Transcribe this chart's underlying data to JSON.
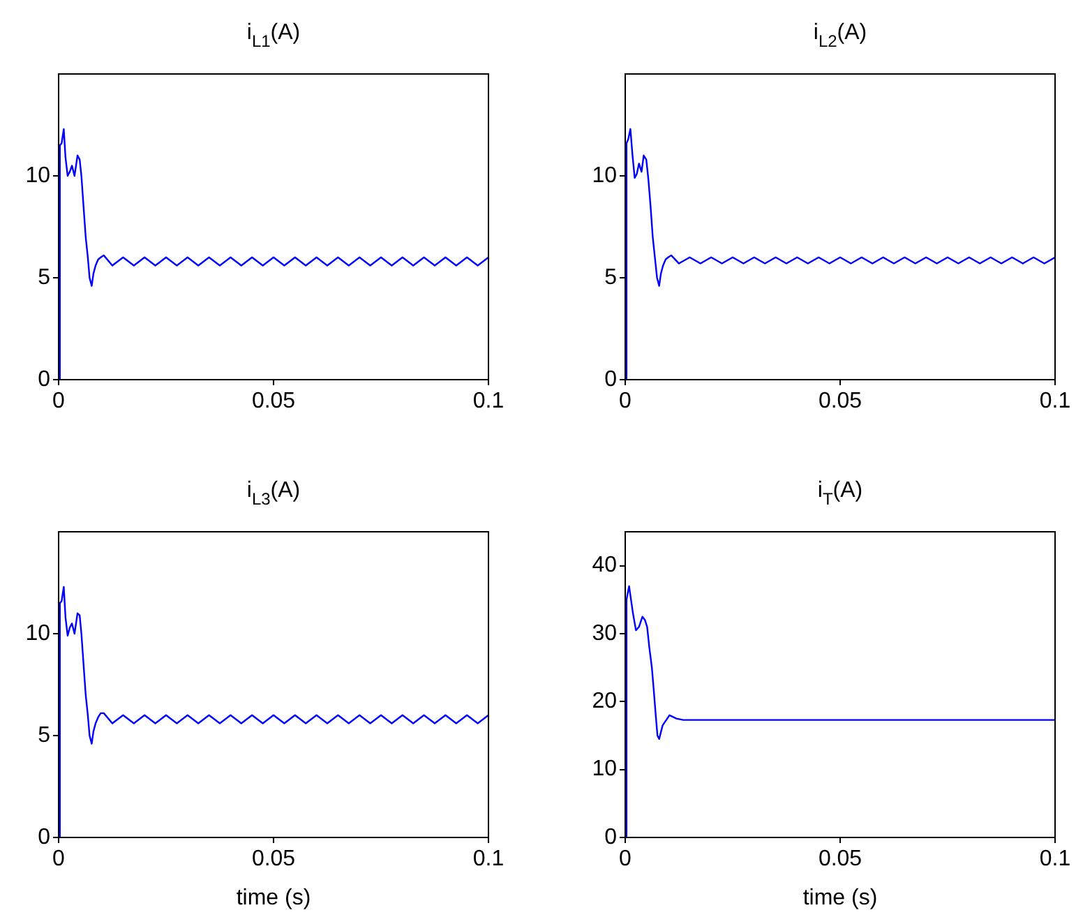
{
  "chart_data": [
    {
      "type": "line",
      "title": "i$_{L1}$(A)",
      "xlim": [
        0,
        0.1
      ],
      "xticks": [
        0,
        0.05,
        0.1
      ],
      "ylim": [
        0,
        15
      ],
      "yticks": [
        0,
        5,
        10
      ],
      "grid": false,
      "marker": "none",
      "line_style": "solid",
      "series": [
        {
          "color": "#0000ff",
          "x": [
            0,
            0.0003,
            0.0007,
            0.0012,
            0.0016,
            0.0021,
            0.0026,
            0.0031,
            0.0037,
            0.0044,
            0.0049,
            0.0053,
            0.0058,
            0.0063,
            0.0068,
            0.0072,
            0.0077,
            0.0081,
            0.0086,
            0.0092,
            0.0098,
            0.0105,
            0.0125,
            0.015,
            0.0175,
            0.02,
            0.0225,
            0.025,
            0.0275,
            0.03,
            0.0325,
            0.035,
            0.0375,
            0.04,
            0.0425,
            0.045,
            0.0475,
            0.05,
            0.0525,
            0.055,
            0.0575,
            0.06,
            0.0625,
            0.065,
            0.0675,
            0.07,
            0.0725,
            0.075,
            0.0775,
            0.08,
            0.0825,
            0.085,
            0.0875,
            0.09,
            0.0925,
            0.095,
            0.0975,
            0.1
          ],
          "values": [
            0,
            11.5,
            11.6,
            12.3,
            10.9,
            10.0,
            10.2,
            10.5,
            10.0,
            11.0,
            10.8,
            10.0,
            8.5,
            7.0,
            6.0,
            5.0,
            4.6,
            5.2,
            5.6,
            5.9,
            6.0,
            6.1,
            5.6,
            6.0,
            5.6,
            6.0,
            5.6,
            6.0,
            5.6,
            6.0,
            5.6,
            6.0,
            5.6,
            6.0,
            5.6,
            6.0,
            5.6,
            6.0,
            5.6,
            6.0,
            5.6,
            6.0,
            5.6,
            6.0,
            5.6,
            6.0,
            5.6,
            6.0,
            5.6,
            6.0,
            5.6,
            6.0,
            5.6,
            6.0,
            5.6,
            6.0,
            5.6,
            6.0
          ]
        }
      ]
    },
    {
      "type": "line",
      "title": "i$_{L2}$(A)",
      "xlim": [
        0,
        0.1
      ],
      "xticks": [
        0,
        0.05,
        0.1
      ],
      "ylim": [
        0,
        15
      ],
      "yticks": [
        0,
        5,
        10
      ],
      "grid": false,
      "marker": "none",
      "line_style": "solid",
      "series": [
        {
          "color": "#0000ff",
          "x": [
            0,
            0.0003,
            0.0007,
            0.0012,
            0.0017,
            0.0022,
            0.0027,
            0.0032,
            0.0038,
            0.0043,
            0.0049,
            0.0054,
            0.0059,
            0.0064,
            0.0069,
            0.0074,
            0.0079,
            0.0083,
            0.0088,
            0.0094,
            0.01,
            0.0107,
            0.0125,
            0.015,
            0.0175,
            0.02,
            0.0225,
            0.025,
            0.0275,
            0.03,
            0.0325,
            0.035,
            0.0375,
            0.04,
            0.0425,
            0.045,
            0.0475,
            0.05,
            0.0525,
            0.055,
            0.0575,
            0.06,
            0.0625,
            0.065,
            0.0675,
            0.07,
            0.0725,
            0.075,
            0.0775,
            0.08,
            0.0825,
            0.085,
            0.0875,
            0.09,
            0.0925,
            0.095,
            0.0975,
            0.1
          ],
          "values": [
            0,
            11.6,
            11.8,
            12.3,
            11.0,
            9.9,
            10.1,
            10.6,
            10.2,
            11.0,
            10.8,
            9.8,
            8.5,
            7.0,
            6.0,
            5.0,
            4.6,
            5.2,
            5.6,
            5.9,
            6.0,
            6.1,
            5.7,
            6.0,
            5.7,
            6.0,
            5.7,
            6.0,
            5.7,
            6.0,
            5.7,
            6.0,
            5.7,
            6.0,
            5.7,
            6.0,
            5.7,
            6.0,
            5.7,
            6.0,
            5.7,
            6.0,
            5.7,
            6.0,
            5.7,
            6.0,
            5.7,
            6.0,
            5.7,
            6.0,
            5.7,
            6.0,
            5.7,
            6.0,
            5.7,
            6.0,
            5.7,
            6.0
          ]
        }
      ]
    },
    {
      "type": "line",
      "title": "i$_{L3}$(A)",
      "xlabel": "time (s)",
      "xlim": [
        0,
        0.1
      ],
      "xticks": [
        0,
        0.05,
        0.1
      ],
      "ylim": [
        0,
        15
      ],
      "yticks": [
        0,
        5,
        10
      ],
      "grid": false,
      "marker": "none",
      "line_style": "solid",
      "series": [
        {
          "color": "#0000ff",
          "x": [
            0,
            0.0003,
            0.0007,
            0.0012,
            0.0016,
            0.0021,
            0.0026,
            0.0031,
            0.0037,
            0.0044,
            0.0049,
            0.0053,
            0.0058,
            0.0063,
            0.0068,
            0.0072,
            0.0077,
            0.0081,
            0.0086,
            0.0092,
            0.0098,
            0.0105,
            0.0125,
            0.015,
            0.0175,
            0.02,
            0.0225,
            0.025,
            0.0275,
            0.03,
            0.0325,
            0.035,
            0.0375,
            0.04,
            0.0425,
            0.045,
            0.0475,
            0.05,
            0.0525,
            0.055,
            0.0575,
            0.06,
            0.0625,
            0.065,
            0.0675,
            0.07,
            0.0725,
            0.075,
            0.0775,
            0.08,
            0.0825,
            0.085,
            0.0875,
            0.09,
            0.0925,
            0.095,
            0.0975,
            0.1
          ],
          "values": [
            0,
            11.5,
            11.6,
            12.3,
            10.8,
            9.9,
            10.3,
            10.5,
            10.0,
            11.0,
            10.9,
            10.0,
            8.5,
            7.0,
            6.0,
            5.0,
            4.6,
            5.2,
            5.6,
            5.9,
            6.1,
            6.1,
            5.6,
            6.0,
            5.6,
            6.0,
            5.6,
            6.0,
            5.6,
            6.0,
            5.6,
            6.0,
            5.6,
            6.0,
            5.6,
            6.0,
            5.6,
            6.0,
            5.6,
            6.0,
            5.6,
            6.0,
            5.6,
            6.0,
            5.6,
            6.0,
            5.6,
            6.0,
            5.6,
            6.0,
            5.6,
            6.0,
            5.6,
            6.0,
            5.6,
            6.0,
            5.6,
            6.0
          ]
        }
      ]
    },
    {
      "type": "line",
      "title": "i$_{T}$(A)",
      "xlabel": "time (s)",
      "xlim": [
        0,
        0.1
      ],
      "xticks": [
        0,
        0.05,
        0.1
      ],
      "ylim": [
        0,
        45
      ],
      "yticks": [
        0,
        10,
        20,
        30,
        40
      ],
      "grid": false,
      "marker": "none",
      "line_style": "solid",
      "series": [
        {
          "color": "#0000ff",
          "x": [
            0,
            0.0003,
            0.0009,
            0.0018,
            0.0025,
            0.0032,
            0.004,
            0.0046,
            0.0051,
            0.0056,
            0.0062,
            0.0066,
            0.0071,
            0.0075,
            0.0079,
            0.0087,
            0.0103,
            0.0119,
            0.0135,
            0.1
          ],
          "values": [
            0,
            35,
            37,
            33,
            30.5,
            31,
            32.5,
            32,
            31,
            28,
            25,
            22,
            18,
            15,
            14.5,
            16.5,
            18,
            17.5,
            17.3,
            17.3
          ]
        }
      ]
    }
  ]
}
